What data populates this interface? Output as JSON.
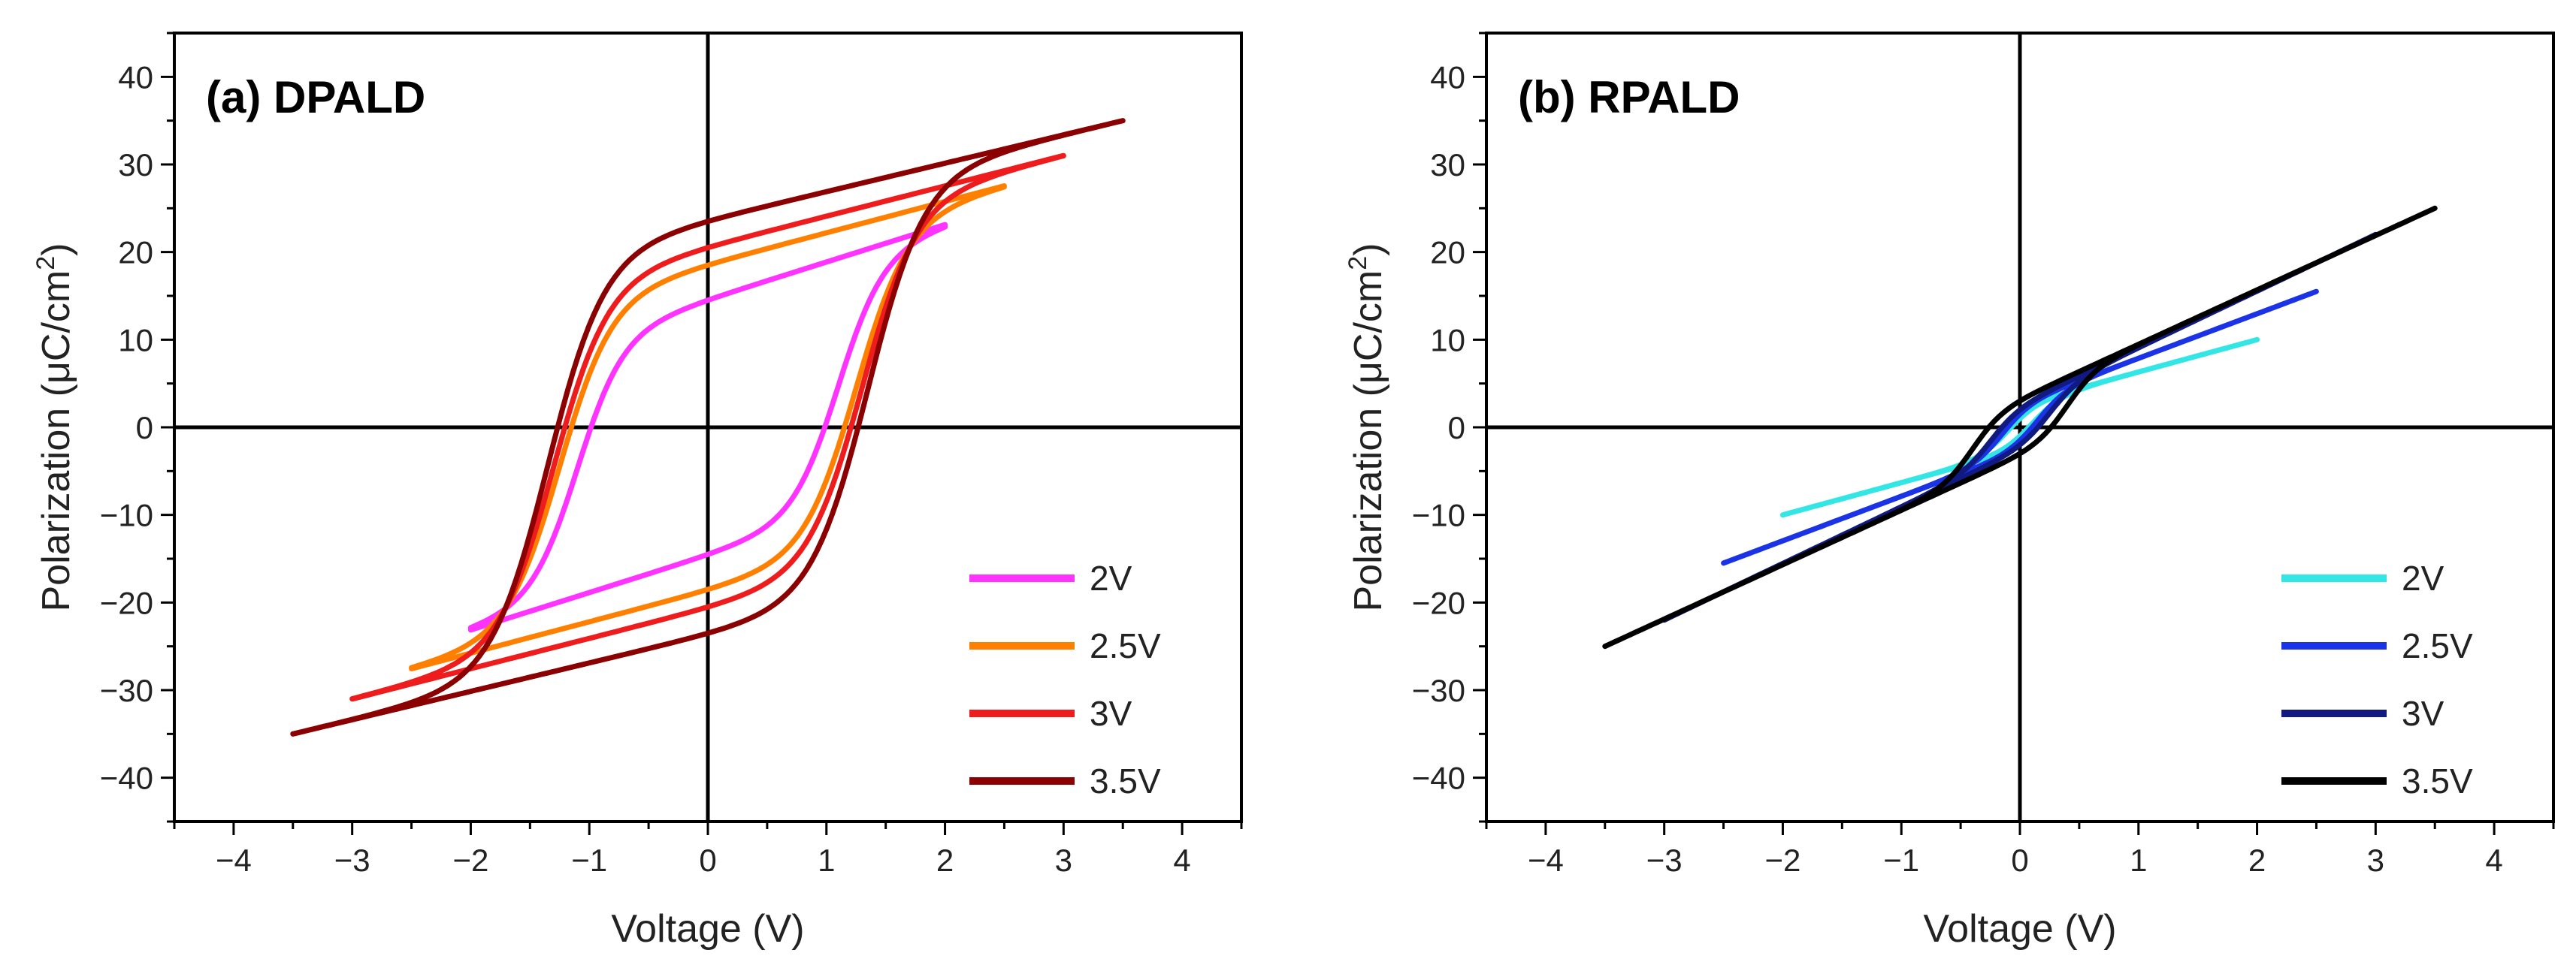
{
  "chart_data": [
    {
      "type": "line",
      "title": "(a) DPALD",
      "xlabel": "Voltage (V)",
      "ylabel_main": "Polarization (μC/cm",
      "ylabel_sup": "2",
      "ylabel_end": ")",
      "xlim": [
        -4.5,
        4.5
      ],
      "ylim": [
        -45,
        45
      ],
      "xticks": [
        -4,
        -3,
        -2,
        -1,
        0,
        1,
        2,
        3,
        4
      ],
      "xtick_labels": [
        "−4",
        "−3",
        "−2",
        "−1",
        "0",
        "1",
        "2",
        "3",
        "4"
      ],
      "yticks": [
        -40,
        -30,
        -20,
        -10,
        0,
        10,
        20,
        30,
        40
      ],
      "ytick_labels": [
        "−40",
        "−30",
        "−20",
        "−10",
        "0",
        "10",
        "20",
        "30",
        "40"
      ],
      "grid": false,
      "legend_position": "bottom-right",
      "series": [
        {
          "name": "2V",
          "color": "#ff33ff",
          "vmax": 2.0,
          "Pmax": 23,
          "Pr": 14.5,
          "Ec": 1.1
        },
        {
          "name": "2.5V",
          "color": "#ff8000",
          "vmax": 2.5,
          "Pmax": 27.5,
          "Pr": 18.5,
          "Ec": 1.25
        },
        {
          "name": "3V",
          "color": "#ee1c1c",
          "vmax": 3.0,
          "Pmax": 31,
          "Pr": 20.5,
          "Ec": 1.3
        },
        {
          "name": "3.5V",
          "color": "#8b0000",
          "vmax": 3.5,
          "Pmax": 35,
          "Pr": 23.5,
          "Ec": 1.35
        }
      ]
    },
    {
      "type": "line",
      "title": "(b) RPALD",
      "xlabel": "Voltage (V)",
      "ylabel_main": "Polarization (μC/cm",
      "ylabel_sup": "2",
      "ylabel_end": ")",
      "xlim": [
        -4.5,
        4.5
      ],
      "ylim": [
        -45,
        45
      ],
      "xticks": [
        -4,
        -3,
        -2,
        -1,
        0,
        1,
        2,
        3,
        4
      ],
      "xtick_labels": [
        "−4",
        "−3",
        "−2",
        "−1",
        "0",
        "1",
        "2",
        "3",
        "4"
      ],
      "yticks": [
        -40,
        -30,
        -20,
        -10,
        0,
        10,
        20,
        30,
        40
      ],
      "ytick_labels": [
        "−40",
        "−30",
        "−20",
        "−10",
        "0",
        "10",
        "20",
        "30",
        "40"
      ],
      "grid": false,
      "legend_position": "bottom-right",
      "series": [
        {
          "name": "2V",
          "color": "#33e6e6",
          "vmax": 2.0,
          "Pmax": 10,
          "Pr": 1.0,
          "Ec": 0.1
        },
        {
          "name": "2.5V",
          "color": "#1a33e6",
          "vmax": 2.5,
          "Pmax": 15.5,
          "Pr": 1.5,
          "Ec": 0.15
        },
        {
          "name": "3V",
          "color": "#101a80",
          "vmax": 3.0,
          "Pmax": 22,
          "Pr": 2.0,
          "Ec": 0.25
        },
        {
          "name": "3.5V",
          "color": "#000000",
          "vmax": 3.5,
          "Pmax": 25,
          "Pr": 3.0,
          "Ec": 0.4
        }
      ]
    }
  ]
}
